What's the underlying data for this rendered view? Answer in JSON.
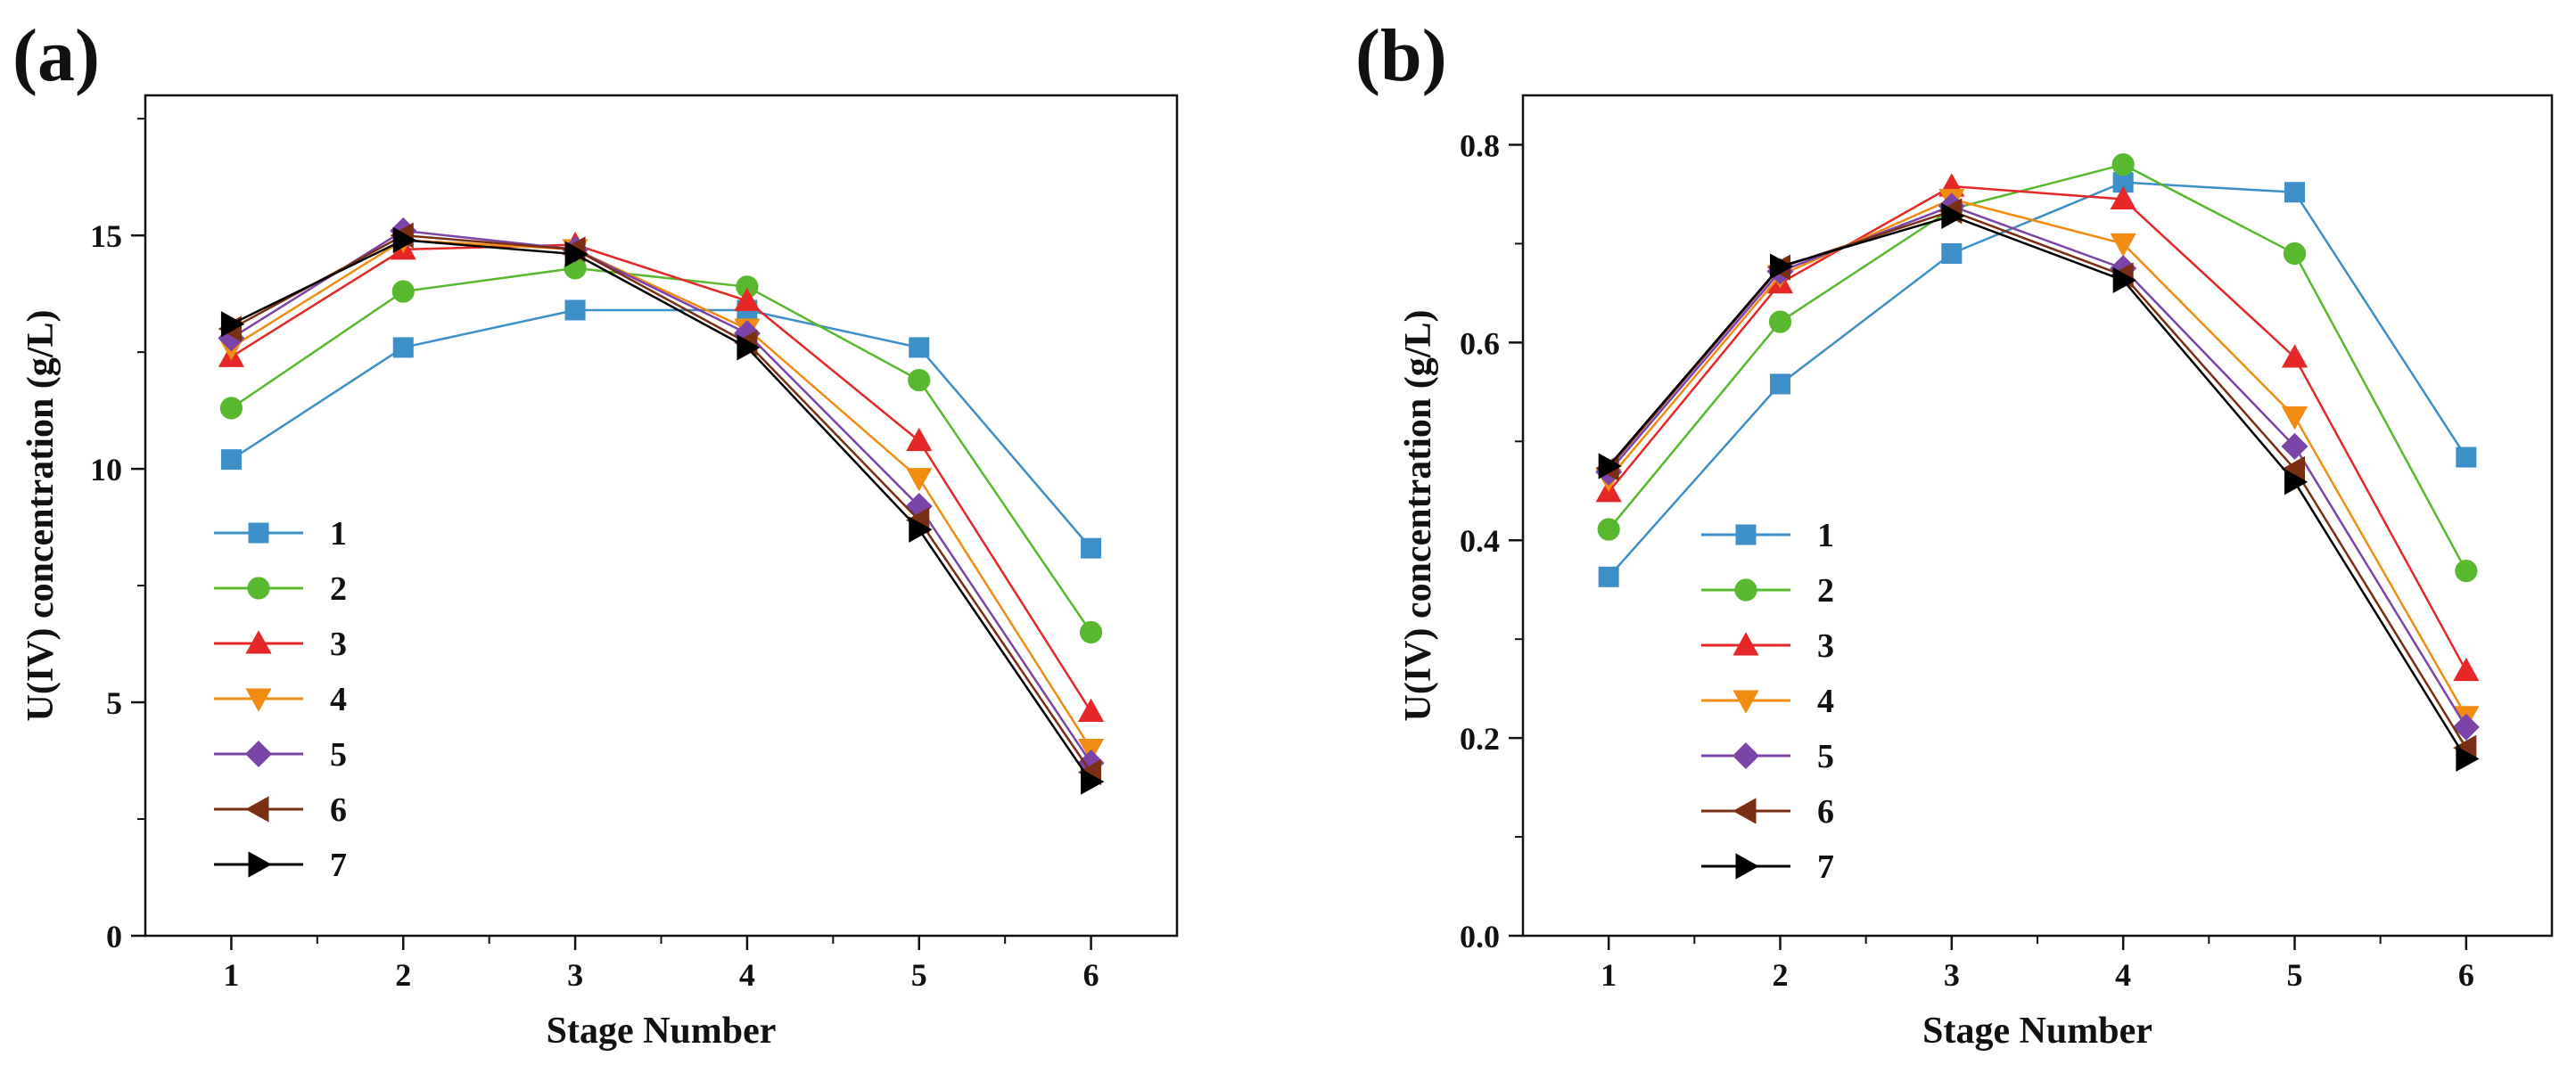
{
  "colors": {
    "1": "#3d8fc7",
    "2": "#58b82e",
    "3": "#e52727",
    "4": "#f28b12",
    "5": "#7a44a8",
    "6": "#7a2f14",
    "7": "#000000"
  },
  "chart_data": [
    {
      "type": "line",
      "panel_label": "(a)",
      "xlabel": "Stage Number",
      "ylabel": "U(IV) concentration (g/L)",
      "xlim": [
        0.5,
        6.5
      ],
      "ylim": [
        0,
        18
      ],
      "xticks": [
        "1",
        "2",
        "3",
        "4",
        "5",
        "6"
      ],
      "yticks": [
        "0",
        "5",
        "10",
        "15"
      ],
      "legend_position": "lower-left",
      "x": [
        1,
        2,
        3,
        4,
        5,
        6
      ],
      "series": [
        {
          "name": "1",
          "marker": "square",
          "values": [
            10.2,
            12.6,
            13.4,
            13.4,
            12.6,
            8.3
          ]
        },
        {
          "name": "2",
          "marker": "circle",
          "values": [
            11.3,
            13.8,
            14.3,
            13.9,
            11.9,
            6.5
          ]
        },
        {
          "name": "3",
          "marker": "triangle-up",
          "values": [
            12.4,
            14.7,
            14.8,
            13.6,
            10.6,
            4.8
          ]
        },
        {
          "name": "4",
          "marker": "triangle-down",
          "values": [
            12.6,
            14.9,
            14.7,
            13.0,
            9.8,
            4.0
          ]
        },
        {
          "name": "5",
          "marker": "diamond",
          "values": [
            12.8,
            15.1,
            14.7,
            12.9,
            9.2,
            3.7
          ]
        },
        {
          "name": "6",
          "marker": "triangle-left",
          "values": [
            13.0,
            15.0,
            14.7,
            12.7,
            8.9,
            3.5
          ]
        },
        {
          "name": "7",
          "marker": "triangle-right",
          "values": [
            13.1,
            14.9,
            14.6,
            12.6,
            8.7,
            3.3
          ]
        }
      ]
    },
    {
      "type": "line",
      "panel_label": "(b)",
      "xlabel": "Stage Number",
      "ylabel": "U(IV) concentration (g/L)",
      "xlim": [
        0.5,
        6.5
      ],
      "ylim": [
        0.0,
        0.85
      ],
      "xticks": [
        "1",
        "2",
        "3",
        "4",
        "5",
        "6"
      ],
      "yticks": [
        "0.0",
        "0.2",
        "0.4",
        "0.6",
        "0.8"
      ],
      "legend_position": "lower-left",
      "x": [
        1,
        2,
        3,
        4,
        5,
        6
      ],
      "series": [
        {
          "name": "1",
          "marker": "square",
          "values": [
            0.363,
            0.558,
            0.69,
            0.762,
            0.752,
            0.484
          ]
        },
        {
          "name": "2",
          "marker": "circle",
          "values": [
            0.411,
            0.621,
            0.735,
            0.78,
            0.69,
            0.369
          ]
        },
        {
          "name": "3",
          "marker": "triangle-up",
          "values": [
            0.449,
            0.66,
            0.758,
            0.745,
            0.585,
            0.268
          ]
        },
        {
          "name": "4",
          "marker": "triangle-down",
          "values": [
            0.462,
            0.668,
            0.745,
            0.7,
            0.525,
            0.222
          ]
        },
        {
          "name": "5",
          "marker": "diamond",
          "values": [
            0.469,
            0.672,
            0.738,
            0.675,
            0.495,
            0.211
          ]
        },
        {
          "name": "6",
          "marker": "triangle-left",
          "values": [
            0.473,
            0.676,
            0.733,
            0.668,
            0.472,
            0.19
          ]
        },
        {
          "name": "7",
          "marker": "triangle-right",
          "values": [
            0.475,
            0.677,
            0.728,
            0.663,
            0.459,
            0.179
          ]
        }
      ]
    }
  ]
}
